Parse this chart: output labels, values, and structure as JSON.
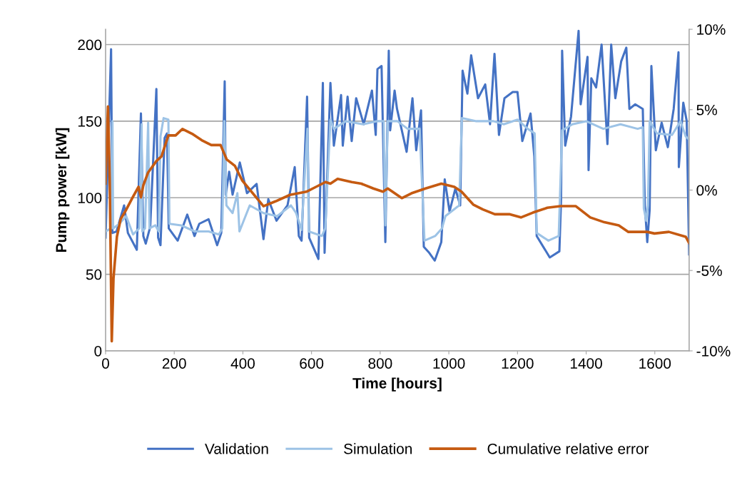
{
  "chart_data": {
    "type": "line",
    "xlabel": "Time [hours]",
    "ylabel": "Pump power [kW]",
    "xlim": [
      0,
      1700
    ],
    "xticks": [
      0,
      200,
      400,
      600,
      800,
      1000,
      1200,
      1400,
      1600
    ],
    "ylim": [
      0,
      210
    ],
    "yticks": [
      0,
      50,
      100,
      150,
      200
    ],
    "y2lim": [
      -10,
      10
    ],
    "y2ticks": [
      {
        "value": -10,
        "label": "-10%"
      },
      {
        "value": -5,
        "label": "-5%"
      },
      {
        "value": 0,
        "label": "0%"
      },
      {
        "value": 5,
        "label": "5%"
      },
      {
        "value": 10,
        "label": "10%"
      }
    ],
    "grid": "y",
    "legend": "bottom",
    "line_style": "solid",
    "marker": "none",
    "series": [
      {
        "name": "Validation",
        "color": "#4472c4",
        "x": [
          0,
          1,
          16,
          20,
          32,
          54,
          65,
          91,
          103,
          110,
          117,
          130,
          148,
          153,
          160,
          172,
          179,
          184,
          210,
          238,
          259,
          273,
          300,
          325,
          337,
          347,
          350,
          360,
          370,
          391,
          412,
          440,
          460,
          474,
          498,
          530,
          551,
          563,
          571,
          587,
          593,
          620,
          633,
          638,
          655,
          665,
          686,
          691,
          705,
          717,
          730,
          752,
          776,
          787,
          792,
          804,
          815,
          825,
          829,
          842,
          849,
          877,
          894,
          905,
          919,
          927,
          943,
          959,
          978,
          988,
          1002,
          1019,
          1033,
          1040,
          1054,
          1065,
          1085,
          1106,
          1120,
          1133,
          1146,
          1162,
          1186,
          1200,
          1214,
          1238,
          1249,
          1256,
          1294,
          1322,
          1327,
          1330,
          1339,
          1356,
          1378,
          1384,
          1404,
          1407,
          1415,
          1429,
          1445,
          1462,
          1473,
          1485,
          1502,
          1517,
          1526,
          1543,
          1565,
          1571,
          1578,
          1585,
          1590,
          1603,
          1620,
          1638,
          1655,
          1669,
          1670,
          1683,
          1693,
          1700
        ],
        "values": [
          74,
          82,
          197,
          77,
          78,
          95,
          77,
          66,
          155,
          75,
          70,
          81,
          171,
          74,
          69,
          139,
          142,
          80,
          72,
          89,
          75,
          83,
          86,
          69,
          77,
          176,
          102,
          117,
          102,
          123,
          103,
          109,
          73,
          99,
          85,
          95,
          120,
          75,
          72,
          166,
          74,
          60,
          175,
          64,
          175,
          134,
          167,
          134,
          166,
          137,
          165,
          148,
          170,
          141,
          184,
          186,
          71,
          196,
          144,
          170,
          158,
          130,
          165,
          131,
          157,
          68,
          64,
          59,
          71,
          112,
          91,
          106,
          95,
          183,
          168,
          193,
          165,
          174,
          148,
          194,
          141,
          165,
          169,
          169,
          137,
          155,
          127,
          75,
          61,
          65,
          99,
          196,
          134,
          153,
          209,
          161,
          192,
          118,
          178,
          172,
          200,
          135,
          200,
          165,
          189,
          198,
          158,
          161,
          158,
          95,
          71,
          92,
          186,
          131,
          149,
          133,
          158,
          195,
          120,
          162,
          150,
          63
        ]
      },
      {
        "name": "Simulation",
        "color": "#9dc3e6",
        "x": [
          0,
          16,
          20,
          22,
          40,
          60,
          80,
          98,
          105,
          107,
          115,
          124,
          128,
          145,
          155,
          160,
          169,
          183,
          186,
          220,
          260,
          300,
          330,
          340,
          346,
          352,
          370,
          384,
          390,
          420,
          460,
          500,
          540,
          555,
          571,
          588,
          592,
          630,
          640,
          655,
          665,
          700,
          750,
          790,
          810,
          815,
          822,
          850,
          880,
          915,
          929,
          960,
          980,
          990,
          1030,
          1038,
          1080,
          1130,
          1160,
          1200,
          1230,
          1250,
          1256,
          1290,
          1320,
          1330,
          1360,
          1400,
          1450,
          1500,
          1550,
          1565,
          1568,
          1575,
          1580,
          1585,
          1606,
          1650,
          1675,
          1690,
          1700
        ],
        "values": [
          78,
          80,
          150,
          80,
          83,
          88,
          76,
          80,
          148,
          78,
          80,
          149,
          80,
          82,
          78,
          140,
          152,
          151,
          83,
          82,
          78,
          78,
          76,
          80,
          150,
          95,
          90,
          103,
          78,
          95,
          90,
          88,
          95,
          90,
          79,
          145,
          78,
          75,
          80,
          151,
          145,
          150,
          148,
          150,
          150,
          82,
          150,
          150,
          145,
          145,
          72,
          75,
          80,
          88,
          95,
          152,
          150,
          150,
          148,
          151,
          145,
          142,
          77,
          72,
          75,
          144,
          148,
          150,
          145,
          148,
          145,
          146,
          93,
          85,
          95,
          150,
          142,
          141,
          150,
          140,
          138
        ]
      },
      {
        "name": "Cumulative relative error",
        "color": "#c55a11",
        "axis": "y2",
        "x": [
          0,
          7,
          12,
          18,
          23,
          33,
          44,
          58,
          79,
          96,
          103,
          110,
          124,
          148,
          163,
          183,
          204,
          224,
          252,
          280,
          308,
          335,
          353,
          377,
          398,
          460,
          495,
          537,
          585,
          613,
          641,
          655,
          676,
          717,
          745,
          780,
          808,
          822,
          863,
          891,
          932,
          978,
          1016,
          1037,
          1071,
          1099,
          1134,
          1176,
          1210,
          1245,
          1287,
          1325,
          1370,
          1412,
          1453,
          1495,
          1523,
          1578,
          1599,
          1641,
          1690,
          1700
        ],
        "values": [
          0.4,
          5.2,
          0.7,
          -9.4,
          -5.5,
          -2.9,
          -1.8,
          -1.3,
          -0.45,
          0.2,
          -0.45,
          0.3,
          1.1,
          1.8,
          2.1,
          3.4,
          3.4,
          3.8,
          3.5,
          3.1,
          2.8,
          2.8,
          1.9,
          1.5,
          0.6,
          -1.0,
          -0.7,
          -0.3,
          -0.1,
          0.2,
          0.5,
          0.4,
          0.7,
          0.5,
          0.4,
          0.1,
          -0.1,
          0.1,
          -0.5,
          -0.2,
          0.1,
          0.4,
          0.2,
          -0.1,
          -0.9,
          -1.2,
          -1.5,
          -1.5,
          -1.7,
          -1.4,
          -1.1,
          -1.0,
          -1.0,
          -1.7,
          -2.0,
          -2.2,
          -2.6,
          -2.6,
          -2.7,
          -2.6,
          -2.9,
          -3.3
        ]
      }
    ]
  }
}
